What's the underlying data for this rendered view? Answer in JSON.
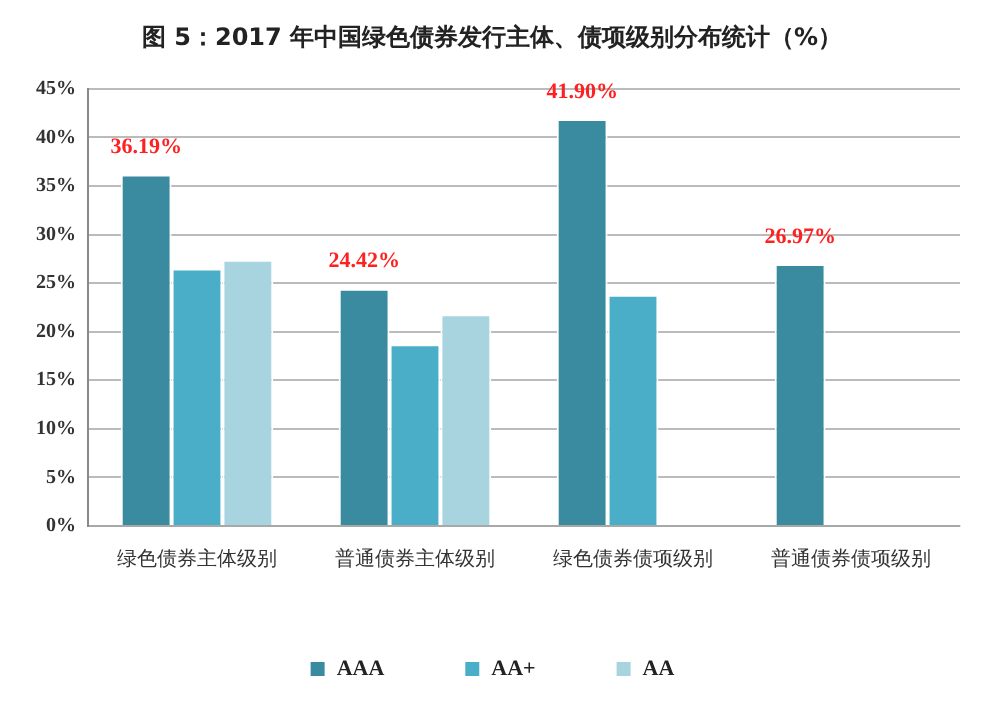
{
  "chart_data": {
    "type": "bar",
    "title": "图 5：2017 年中国绿色债券发行主体、债项级别分布统计（%）",
    "categories": [
      "绿色债券主体级别",
      "普通债券主体级别",
      "绿色债券债项级别",
      "普通债券债项级别"
    ],
    "series": [
      {
        "name": "AAA",
        "color": "#3a8aa0",
        "values": [
          36.19,
          24.42,
          41.9,
          26.97
        ],
        "value_labels": [
          "36.19%",
          "24.42%",
          "41.90%",
          "26.97%"
        ]
      },
      {
        "name": "AA+",
        "color": "#4aaec8",
        "values": [
          26.5,
          18.7,
          23.8,
          null
        ]
      },
      {
        "name": "AA",
        "color": "#a8d4e0",
        "values": [
          27.4,
          21.8,
          null,
          null
        ]
      }
    ],
    "ylim": [
      0,
      45
    ],
    "yticks": [
      {
        "value": 0,
        "label": "0%"
      },
      {
        "value": 5,
        "label": "5%"
      },
      {
        "value": 10,
        "label": "10%"
      },
      {
        "value": 15,
        "label": "15%"
      },
      {
        "value": 20,
        "label": "20%"
      },
      {
        "value": 25,
        "label": "25%"
      },
      {
        "value": 30,
        "label": "30%"
      },
      {
        "value": 35,
        "label": "35%"
      },
      {
        "value": 40,
        "label": "40%"
      },
      {
        "value": 45,
        "label": "45%"
      }
    ],
    "grid": "y",
    "legend": "bottom"
  }
}
